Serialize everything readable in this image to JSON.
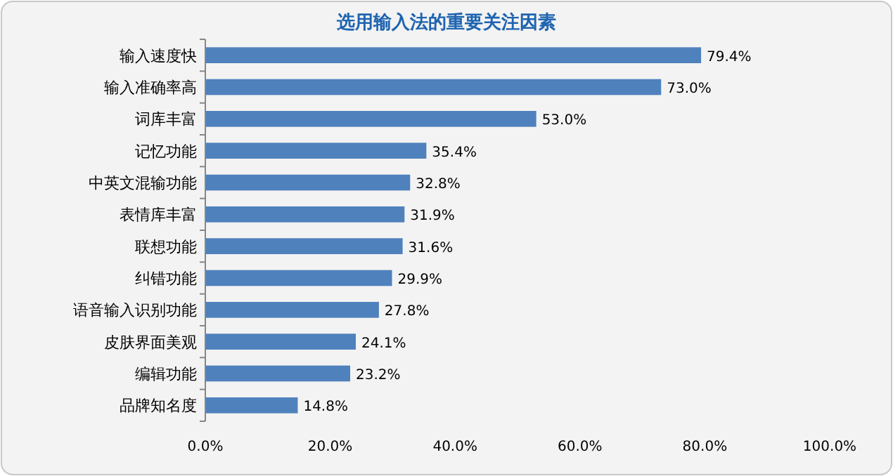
{
  "chart_data": {
    "type": "bar",
    "orientation": "horizontal",
    "title": "选用输入法的重要关注因素",
    "categories": [
      "输入速度快",
      "输入准确率高",
      "词库丰富",
      "记忆功能",
      "中英文混输功能",
      "表情库丰富",
      "联想功能",
      "纠错功能",
      "语音输入识别功能",
      "皮肤界面美观",
      "编辑功能",
      "品牌知名度"
    ],
    "values": [
      79.4,
      73.0,
      53.0,
      35.4,
      32.8,
      31.9,
      31.6,
      29.9,
      27.8,
      24.1,
      23.2,
      14.8
    ],
    "value_labels": [
      "79.4%",
      "73.0%",
      "53.0%",
      "35.4%",
      "32.8%",
      "31.9%",
      "31.6%",
      "29.9%",
      "27.8%",
      "24.1%",
      "23.2%",
      "14.8%"
    ],
    "color": "#4f81bd",
    "xlim": [
      0,
      100
    ],
    "xticks": [
      {
        "value": 0,
        "label": "0.0%"
      },
      {
        "value": 20,
        "label": "20.0%"
      },
      {
        "value": 40,
        "label": "40.0%"
      },
      {
        "value": 60,
        "label": "60.0%"
      },
      {
        "value": 80,
        "label": "80.0%"
      },
      {
        "value": 100,
        "label": "100.0%"
      }
    ],
    "grid": false
  }
}
